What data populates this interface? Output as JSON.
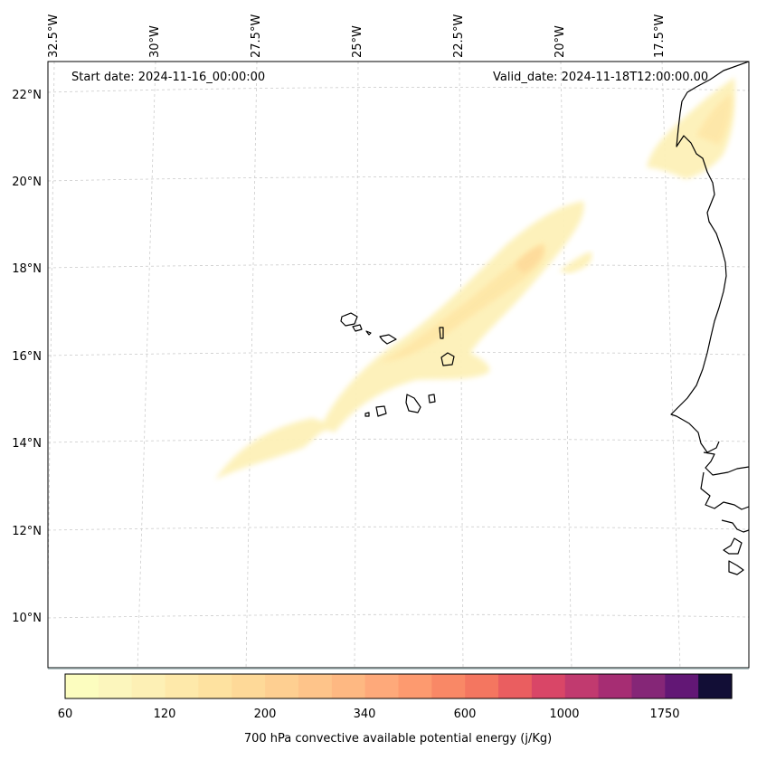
{
  "annotations": {
    "start_date": "Start date: 2024-11-16_00:00:00",
    "valid_date": "Valid_date: 2024-11-18T12:00:00.00"
  },
  "map": {
    "lon_labels": [
      "32.5°W",
      "30°W",
      "27.5°W",
      "25°W",
      "22.5°W",
      "20°W",
      "17.5°W"
    ],
    "lat_labels": [
      "22°N",
      "20°N",
      "18°N",
      "16°N",
      "14°N",
      "12°N",
      "10°N"
    ],
    "gridlines": "dashed",
    "land_outline_color": "#000000"
  },
  "colorbar": {
    "title": "700 hPa convective available potential energy (j/Kg)",
    "tick_labels": [
      "60",
      "120",
      "200",
      "340",
      "600",
      "1000",
      "1750"
    ],
    "colors": [
      "#fcfdbf",
      "#fcf6bd",
      "#fdf0b5",
      "#fee9aa",
      "#fee2a0",
      "#fed998",
      "#fecf91",
      "#fec48a",
      "#feb882",
      "#fea97a",
      "#fd9a6f",
      "#f98866",
      "#f47660",
      "#ea5e60",
      "#d94667",
      "#c13a6f",
      "#a62d73",
      "#852677",
      "#621775",
      "#120e36"
    ]
  }
}
